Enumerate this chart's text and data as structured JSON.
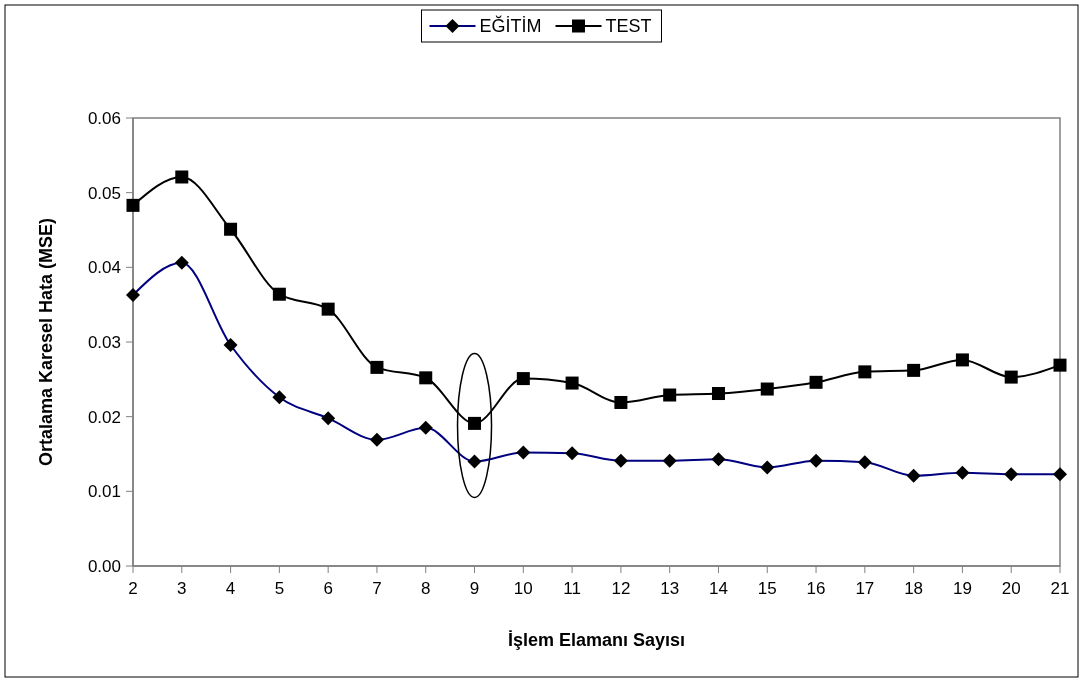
{
  "chart_data": {
    "type": "line",
    "xlabel": "İşlem Elamanı Sayısı",
    "ylabel": "Ortalama Karesel Hata (MSE)",
    "categories": [
      "2",
      "3",
      "4",
      "5",
      "6",
      "7",
      "8",
      "9",
      "10",
      "11",
      "12",
      "13",
      "14",
      "15",
      "16",
      "17",
      "18",
      "19",
      "20",
      "21"
    ],
    "series": [
      {
        "name": "EĞİTİM",
        "color": "#000080",
        "marker": "diamond",
        "values": [
          0.0363,
          0.0406,
          0.0296,
          0.0226,
          0.0198,
          0.0169,
          0.0185,
          0.014,
          0.0152,
          0.0151,
          0.0141,
          0.0141,
          0.0143,
          0.0132,
          0.0141,
          0.0139,
          0.0121,
          0.0125,
          0.0123,
          0.0123
        ]
      },
      {
        "name": "TEST",
        "color": "#000000",
        "marker": "square",
        "values": [
          0.0483,
          0.0521,
          0.0451,
          0.0364,
          0.0344,
          0.0266,
          0.0252,
          0.0191,
          0.0251,
          0.0245,
          0.0219,
          0.0229,
          0.0231,
          0.0237,
          0.0246,
          0.026,
          0.0262,
          0.0276,
          0.0253,
          0.0269
        ]
      }
    ],
    "ylim": [
      0,
      0.06
    ],
    "yticks": [
      {
        "value": 0,
        "label": "0.00"
      },
      0.01,
      0.02,
      0.03,
      0.04,
      0.05,
      0.06
    ],
    "grid": false,
    "legend": "top"
  }
}
